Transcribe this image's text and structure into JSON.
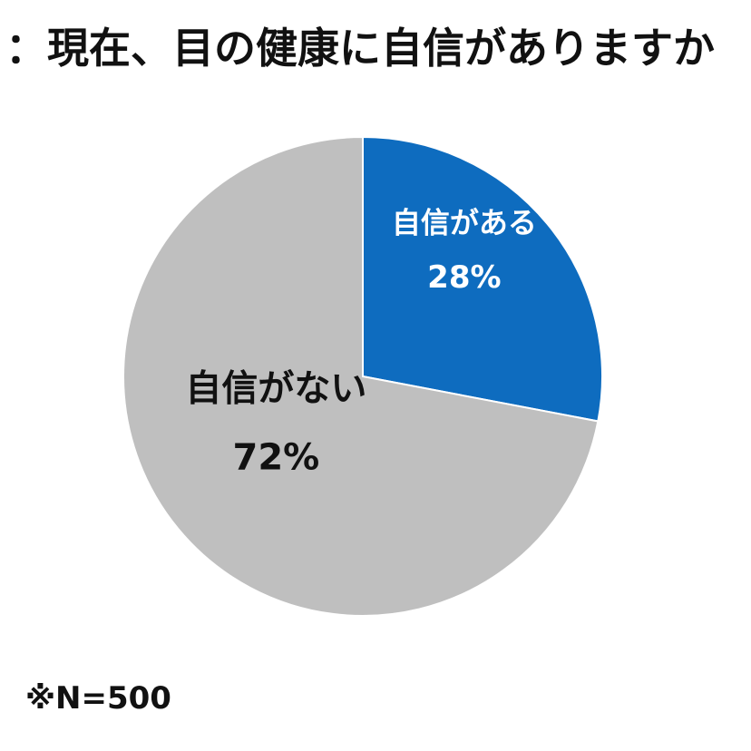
{
  "chart_data": {
    "type": "pie",
    "title": "：現在、目の健康に自信がありますか",
    "slices": [
      {
        "label": "自信がある",
        "value": 28,
        "value_text": "28%",
        "color": "#0e6cbf",
        "text_color": "#ffffff"
      },
      {
        "label": "自信がない",
        "value": 72,
        "value_text": "72%",
        "color": "#bfbfbf",
        "text_color": "#111111"
      }
    ],
    "start": "12 o'clock",
    "direction": "clockwise",
    "legend": "none"
  },
  "note": "※N=500"
}
